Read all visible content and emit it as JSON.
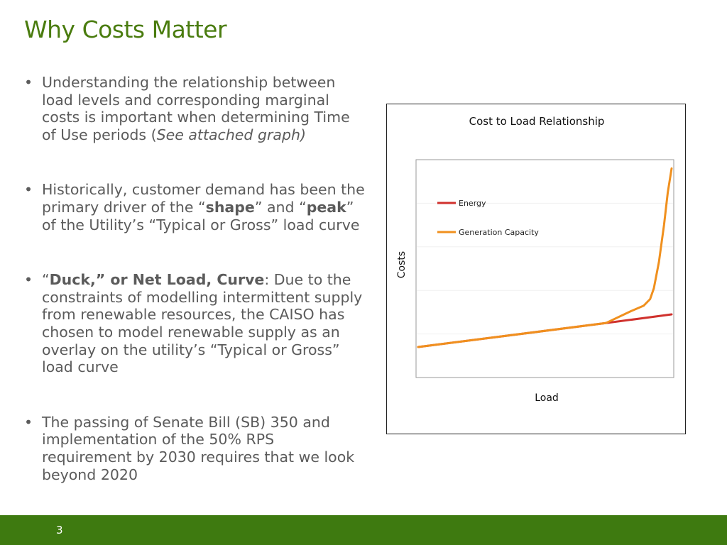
{
  "slide": {
    "title": "Why Costs Matter",
    "page_number": "3"
  },
  "bullets": [
    {
      "marker": "•",
      "t1": "Understanding the relationship between load levels and corresponding marginal costs is important when determining Time of Use periods (",
      "em": "See attached graph)",
      "t2": ""
    },
    {
      "marker": "•",
      "t1": "Historically, customer demand has been the primary driver of the “",
      "b1": "shape",
      "t2": "” and “",
      "b2": "peak",
      "t3": "” of the Utility’s “Typical or Gross” load curve"
    },
    {
      "marker": "•",
      "t1": "“",
      "b1": "Duck,” or Net Load, Curve",
      "t2": ": Due to the constraints of modelling intermittent supply from renewable resources, the CAISO has chosen to model renewable supply as an overlay on the utility’s “Typical or Gross” load curve"
    },
    {
      "marker": "•",
      "t1": "The passing of Senate Bill (SB) 350 and implementation of the 50% RPS requirement by 2030 requires that we look beyond 2020"
    }
  ],
  "chart_data": {
    "type": "line",
    "title": "Cost to Load Relationship",
    "xlabel": "Load",
    "ylabel": "Costs",
    "xlim": [
      0,
      100
    ],
    "ylim": [
      0,
      100
    ],
    "grid": true,
    "legend_position": "top-left",
    "series": [
      {
        "name": "Energy",
        "color": "#d0312d",
        "x": [
          0,
          74,
          100
        ],
        "y": [
          14,
          25,
          29
        ]
      },
      {
        "name": "Generation Capacity",
        "color": "#f0901e",
        "x": [
          0,
          74,
          84,
          89,
          91.5,
          93,
          95,
          97,
          98.5,
          100
        ],
        "y": [
          14,
          25,
          30.5,
          33,
          36,
          41,
          53,
          70,
          85,
          96
        ]
      }
    ]
  },
  "colors": {
    "title_green": "#4a7c0f",
    "footer_green": "#3e7a10",
    "body_text": "#5b5b5b"
  }
}
